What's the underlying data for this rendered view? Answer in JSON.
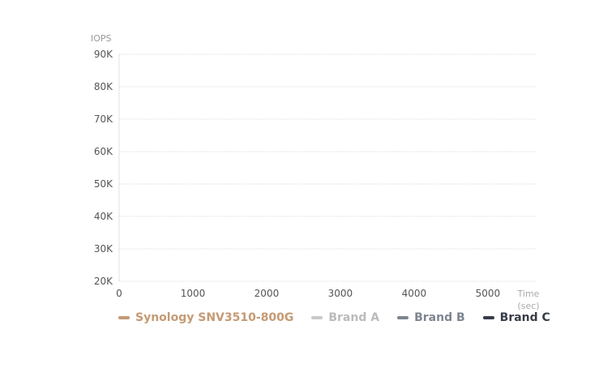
{
  "chart_data": {
    "type": "line",
    "ylabel": "IOPS",
    "xlabel": "Time (sec)",
    "xlabel_lines": [
      "Time",
      "(sec)"
    ],
    "ylim": [
      20000,
      90000
    ],
    "xlim": [
      0,
      5650
    ],
    "y_ticks": [
      20000,
      30000,
      40000,
      50000,
      60000,
      70000,
      80000,
      90000
    ],
    "y_tick_labels": [
      "20K",
      "30K",
      "40K",
      "50K",
      "60K",
      "70K",
      "80K",
      "90K"
    ],
    "x_ticks": [
      0,
      1000,
      2000,
      3000,
      4000,
      5000
    ],
    "x_tick_labels": [
      "0",
      "1000",
      "2000",
      "3000",
      "4000",
      "5000"
    ],
    "grid": true,
    "legend_position": "bottom",
    "series": [
      {
        "name": "Synology SNV3510-800G",
        "color": "#c49a74",
        "values": []
      },
      {
        "name": "Brand A",
        "color": "#c9c9c9",
        "values": []
      },
      {
        "name": "Brand B",
        "color": "#7e8590",
        "values": []
      },
      {
        "name": "Brand C",
        "color": "#383d48",
        "values": []
      }
    ]
  }
}
